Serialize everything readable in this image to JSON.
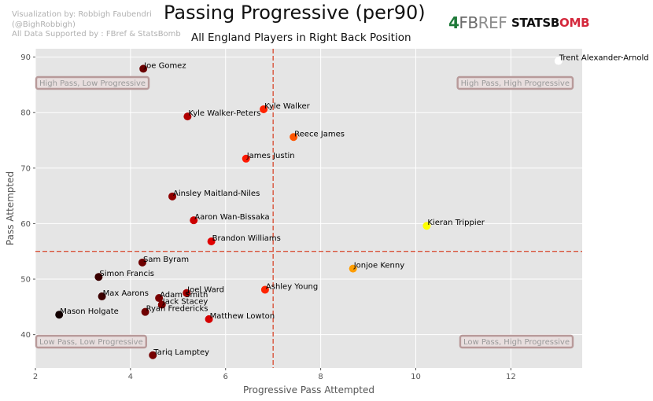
{
  "header": {
    "credit_lines": [
      "Visualization by: Robbigh Faubendri",
      "(@BighRobbigh)",
      "All Data Supported by : FBref & StatsBomb"
    ],
    "title": "Passing Progressive (per90)",
    "subtitle": "All England Players in Right Back Position"
  },
  "logos": {
    "fbref_mark": "4",
    "fbref_fb": "FB",
    "fbref_ref": "REF",
    "statsbomb_left": "STATSB",
    "statsbomb_mid": "O",
    "statsbomb_right": "MB"
  },
  "chart_data": {
    "type": "scatter",
    "xlabel": "Progressive Pass Attempted",
    "ylabel": "Pass Attempted",
    "xlim": [
      2.0,
      13.5
    ],
    "ylim": [
      34.0,
      91.5
    ],
    "xticks": [
      2,
      4,
      6,
      8,
      10,
      12
    ],
    "yticks": [
      40,
      50,
      60,
      70,
      80,
      90
    ],
    "grid": true,
    "reference_lines": {
      "x": 7.0,
      "y": 55.0
    },
    "quadrants": {
      "top_left": "High Pass, Low Progressive",
      "top_right": "High Pass, High Progressive",
      "bottom_left": "Low Pass, Low Progressive",
      "bottom_right": "Low Pass, High Progressive"
    },
    "points": [
      {
        "name": "Trent Alexander-Arnold",
        "x": 13.0,
        "y": 89.3,
        "color": "#ffffff"
      },
      {
        "name": "Joe Gomez",
        "x": 4.27,
        "y": 87.9,
        "color": "#6b0000"
      },
      {
        "name": "Kyle Walker",
        "x": 6.8,
        "y": 80.6,
        "color": "#ff2200"
      },
      {
        "name": "Kyle Walker-Peters",
        "x": 5.2,
        "y": 79.3,
        "color": "#b00000"
      },
      {
        "name": "Reece James",
        "x": 7.43,
        "y": 75.6,
        "color": "#ff5500"
      },
      {
        "name": "James Justin",
        "x": 6.43,
        "y": 71.7,
        "color": "#ff1800"
      },
      {
        "name": "Ainsley Maitland-Niles",
        "x": 4.88,
        "y": 64.9,
        "color": "#8f0000"
      },
      {
        "name": "Aaron Wan-Bissaka",
        "x": 5.33,
        "y": 60.6,
        "color": "#cc0000"
      },
      {
        "name": "Kieran Trippier",
        "x": 10.23,
        "y": 59.6,
        "color": "#ffff00"
      },
      {
        "name": "Brandon Williams",
        "x": 5.7,
        "y": 56.8,
        "color": "#e00000"
      },
      {
        "name": "Sam Byram",
        "x": 4.25,
        "y": 53.0,
        "color": "#6e0000"
      },
      {
        "name": "Jonjoe Kenny",
        "x": 8.68,
        "y": 51.9,
        "color": "#ff9d00"
      },
      {
        "name": "Simon Francis",
        "x": 3.33,
        "y": 50.4,
        "color": "#3a0000"
      },
      {
        "name": "Ashley Young",
        "x": 6.83,
        "y": 48.1,
        "color": "#ff2400"
      },
      {
        "name": "Joel Ward",
        "x": 5.18,
        "y": 47.5,
        "color": "#a80000"
      },
      {
        "name": "Max Aarons",
        "x": 3.4,
        "y": 46.9,
        "color": "#3c0000"
      },
      {
        "name": "Adam Smith",
        "x": 4.6,
        "y": 46.6,
        "color": "#7a0000"
      },
      {
        "name": "Jack Stacey",
        "x": 4.66,
        "y": 45.4,
        "color": "#800000"
      },
      {
        "name": "Ryan Fredericks",
        "x": 4.31,
        "y": 44.1,
        "color": "#700000"
      },
      {
        "name": "Mason Holgate",
        "x": 2.5,
        "y": 43.6,
        "color": "#120000"
      },
      {
        "name": "Matthew Lowton",
        "x": 5.65,
        "y": 42.8,
        "color": "#d40000"
      },
      {
        "name": "Tariq Lamptey",
        "x": 4.47,
        "y": 36.3,
        "color": "#760000"
      }
    ]
  }
}
